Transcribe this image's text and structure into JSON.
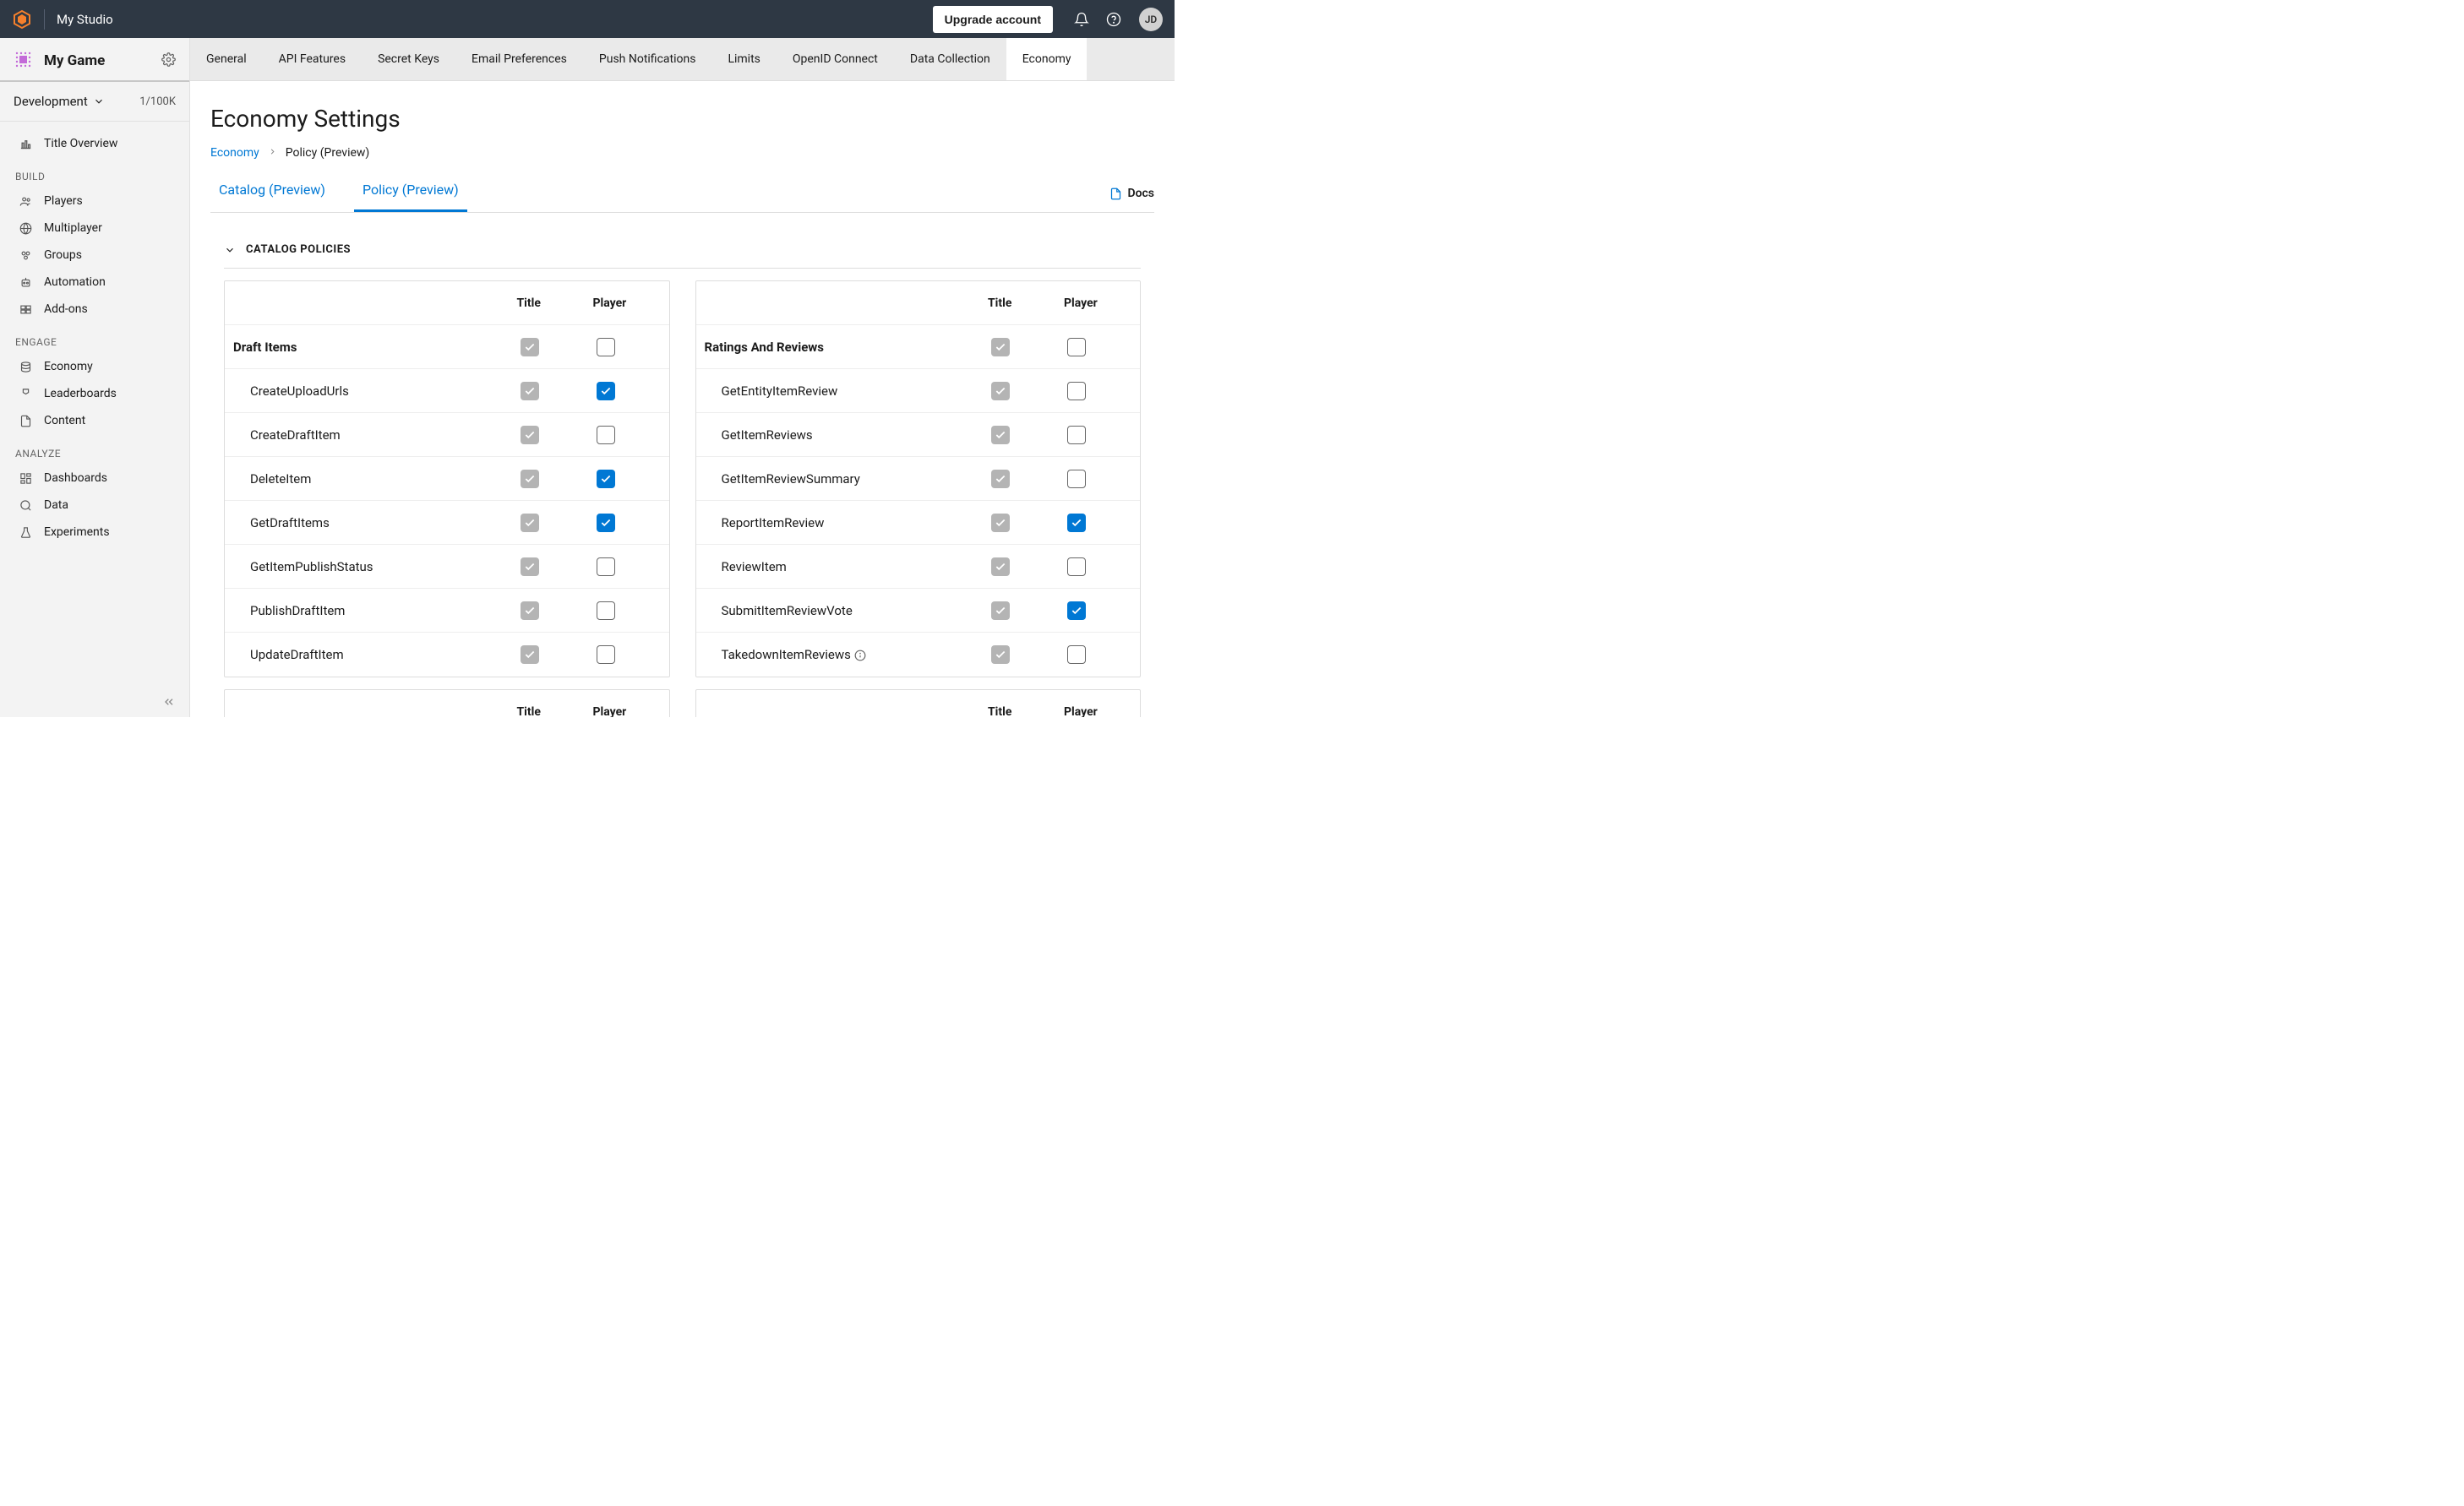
{
  "topbar": {
    "studio_name": "My Studio",
    "upgrade_label": "Upgrade account",
    "avatar_initials": "JD"
  },
  "sidebar": {
    "game_name": "My Game",
    "env_name": "Development",
    "env_count": "1/100K",
    "overview_label": "Title Overview",
    "sections": {
      "build": {
        "label": "BUILD",
        "items": [
          "Players",
          "Multiplayer",
          "Groups",
          "Automation",
          "Add-ons"
        ]
      },
      "engage": {
        "label": "ENGAGE",
        "items": [
          "Economy",
          "Leaderboards",
          "Content"
        ]
      },
      "analyze": {
        "label": "ANALYZE",
        "items": [
          "Dashboards",
          "Data",
          "Experiments"
        ]
      }
    }
  },
  "sub_tabs": [
    "General",
    "API Features",
    "Secret Keys",
    "Email Preferences",
    "Push Notifications",
    "Limits",
    "OpenID Connect",
    "Data Collection",
    "Economy"
  ],
  "active_sub_tab": "Economy",
  "page_title": "Economy Settings",
  "breadcrumb": {
    "root": "Economy",
    "current": "Policy (Preview)"
  },
  "inner_tabs": [
    "Catalog (Preview)",
    "Policy (Preview)"
  ],
  "active_inner_tab": "Policy (Preview)",
  "docs_label": "Docs",
  "section_title": "CATALOG POLICIES",
  "columns": {
    "title": "Title",
    "player": "Player"
  },
  "left_table": {
    "group": "Draft Items",
    "group_player": "unchecked",
    "rows": [
      {
        "label": "CreateUploadUrls",
        "player": "checked"
      },
      {
        "label": "CreateDraftItem",
        "player": "unchecked"
      },
      {
        "label": "DeleteItem",
        "player": "checked"
      },
      {
        "label": "GetDraftItems",
        "player": "checked"
      },
      {
        "label": "GetItemPublishStatus",
        "player": "unchecked"
      },
      {
        "label": "PublishDraftItem",
        "player": "unchecked"
      },
      {
        "label": "UpdateDraftItem",
        "player": "unchecked"
      }
    ]
  },
  "right_table": {
    "group": "Ratings And Reviews",
    "group_player": "unchecked",
    "rows": [
      {
        "label": "GetEntityItemReview",
        "player": "unchecked"
      },
      {
        "label": "GetItemReviews",
        "player": "unchecked"
      },
      {
        "label": "GetItemReviewSummary",
        "player": "unchecked"
      },
      {
        "label": "ReportItemReview",
        "player": "checked"
      },
      {
        "label": "ReviewItem",
        "player": "unchecked"
      },
      {
        "label": "SubmitItemReviewVote",
        "player": "checked"
      },
      {
        "label": "TakedownItemReviews",
        "player": "unchecked",
        "info": true
      }
    ]
  },
  "colors": {
    "accent": "#0078d4",
    "topbar_bg": "#2e3844",
    "sidebar_bg": "#f3f3f3",
    "subtabs_bg": "#eaeaea",
    "disabled_cb": "#b4b4b4",
    "logo": "#f5802c"
  }
}
